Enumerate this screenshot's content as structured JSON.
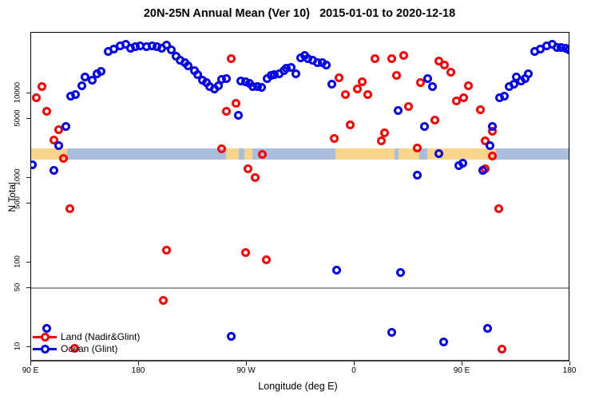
{
  "header": {
    "title": "20N-25N Annual Mean (Ver 10)   2015-01-01 to 2020-12-18"
  },
  "legend": {
    "items": [
      {
        "label": "Land (Nadir&Glint)",
        "color": "#ff0000"
      },
      {
        "label": "Ocean (Glint)",
        "color": "#0000ee"
      }
    ]
  },
  "colors": {
    "land": "#ff0000",
    "ocean": "#0000ee",
    "band_ocean": "#a9bedc",
    "band_land": "#fbd48b",
    "ref_line": "#9b9b9b"
  },
  "chart_data": {
    "type": "scatter",
    "title": "20N-25N Annual Mean (Ver 10)   2015-01-01 to 2020-12-18",
    "xlabel": "Longitude (deg E)",
    "ylabel": "N Total",
    "x_axis": {
      "start_deg": 90,
      "end_deg": 540,
      "note": "longitude wraps eastward from 90E to 180"
    },
    "x_ticks": [
      {
        "deg": 90,
        "label": "90 E"
      },
      {
        "deg": 180,
        "label": "180"
      },
      {
        "deg": 270,
        "label": "90 W"
      },
      {
        "deg": 360,
        "label": "0"
      },
      {
        "deg": 450,
        "label": "90 E"
      },
      {
        "deg": 540,
        "label": "180"
      }
    ],
    "y_scale": "log10",
    "y_ticks": [
      {
        "value": 10,
        "label": "10"
      },
      {
        "value": 50,
        "label": "50"
      },
      {
        "value": 100,
        "label": "100"
      },
      {
        "value": 500,
        "label": "500"
      },
      {
        "value": 1000,
        "label": "1000"
      },
      {
        "value": 5000,
        "label": "5000"
      },
      {
        "value": 10000,
        "label": "10000"
      }
    ],
    "ref_line": {
      "value": 50
    },
    "band": {
      "top_value": 2210,
      "bottom_value": 1640,
      "base_range_deg": [
        90,
        538.7
      ],
      "land_segments_deg": [
        [
          90,
          120
        ],
        [
          252.7,
          263.3
        ],
        [
          268,
          274.7
        ],
        [
          344,
          393.3
        ],
        [
          396.7,
          414
        ],
        [
          420.7,
          478
        ]
      ]
    },
    "series": [
      {
        "name": "Land (Nadir&Glint)",
        "color": "#ff0000",
        "points": [
          [
            94,
            8970
          ],
          [
            98.7,
            12100
          ],
          [
            102.7,
            6200
          ],
          [
            109.3,
            2780
          ],
          [
            113.3,
            3690
          ],
          [
            116.7,
            1690
          ],
          [
            122,
            438
          ],
          [
            126,
            9.6
          ],
          [
            200,
            36
          ],
          [
            202.7,
            139
          ],
          [
            249.3,
            2230
          ],
          [
            253.3,
            6070
          ],
          [
            256.7,
            26000
          ],
          [
            260.7,
            7540
          ],
          [
            269.3,
            130
          ],
          [
            270.7,
            1270
          ],
          [
            277.3,
            1020
          ],
          [
            282.7,
            1880
          ],
          [
            286,
            109
          ],
          [
            342.7,
            2960
          ],
          [
            346.7,
            15200
          ],
          [
            352,
            9780
          ],
          [
            356,
            4200
          ],
          [
            362,
            11200
          ],
          [
            366,
            13600
          ],
          [
            371.3,
            9780
          ],
          [
            376.7,
            26000
          ],
          [
            382,
            2720
          ],
          [
            385.3,
            3380
          ],
          [
            391.3,
            26000
          ],
          [
            395.3,
            16200
          ],
          [
            400.7,
            27900
          ],
          [
            405.3,
            6920
          ],
          [
            412,
            2280
          ],
          [
            415.3,
            13300
          ],
          [
            426.7,
            4880
          ],
          [
            430,
            23900
          ],
          [
            435.3,
            21800
          ],
          [
            440,
            17600
          ],
          [
            445.3,
            8050
          ],
          [
            451.3,
            8970
          ],
          [
            455.3,
            12400
          ],
          [
            464.7,
            6470
          ],
          [
            468.7,
            2720
          ],
          [
            469.3,
            1270
          ],
          [
            474.7,
            3530
          ],
          [
            475.3,
            1800
          ],
          [
            480,
            438
          ],
          [
            483.3,
            9.4
          ]
        ]
      },
      {
        "name": "Ocean (Glint)",
        "color": "#0000ee",
        "points": [
          [
            91.3,
            1420
          ],
          [
            103.3,
            16.5
          ],
          [
            108.7,
            1220
          ],
          [
            112.7,
            2390
          ],
          [
            118.7,
            4100
          ],
          [
            122.7,
            9350
          ],
          [
            126.7,
            9780
          ],
          [
            132,
            12400
          ],
          [
            135.3,
            15700
          ],
          [
            141.3,
            14400
          ],
          [
            144.7,
            16900
          ],
          [
            148,
            18000
          ],
          [
            154,
            31600
          ],
          [
            158.7,
            33100
          ],
          [
            164,
            36700
          ],
          [
            168.7,
            38300
          ],
          [
            173.3,
            33800
          ],
          [
            176.7,
            35300
          ],
          [
            181.3,
            36700
          ],
          [
            186,
            35300
          ],
          [
            190.7,
            36700
          ],
          [
            195.3,
            35300
          ],
          [
            199.3,
            33800
          ],
          [
            202.7,
            37500
          ],
          [
            206.7,
            33000
          ],
          [
            210.7,
            27200
          ],
          [
            214,
            24400
          ],
          [
            218,
            22900
          ],
          [
            221.3,
            21000
          ],
          [
            226,
            18400
          ],
          [
            228.7,
            16500
          ],
          [
            232.7,
            14400
          ],
          [
            236,
            13300
          ],
          [
            238.7,
            12100
          ],
          [
            242.7,
            11200
          ],
          [
            246,
            12400
          ],
          [
            249.3,
            14500
          ],
          [
            252.7,
            15100
          ],
          [
            256.7,
            13.5
          ],
          [
            263.3,
            5450
          ],
          [
            265.3,
            13900
          ],
          [
            268.7,
            13600
          ],
          [
            272,
            13000
          ],
          [
            275.3,
            12100
          ],
          [
            278.7,
            11900
          ],
          [
            282,
            11700
          ],
          [
            286.7,
            15100
          ],
          [
            290,
            16200
          ],
          [
            293.3,
            16500
          ],
          [
            296.7,
            16900
          ],
          [
            300.7,
            18700
          ],
          [
            303.3,
            20000
          ],
          [
            306.7,
            20400
          ],
          [
            310.7,
            16900
          ],
          [
            314.7,
            26500
          ],
          [
            318,
            27900
          ],
          [
            321.3,
            26000
          ],
          [
            325.3,
            24900
          ],
          [
            328.7,
            23300
          ],
          [
            332.7,
            22900
          ],
          [
            336,
            21800
          ],
          [
            341.3,
            12700
          ],
          [
            344.7,
            82
          ],
          [
            390.7,
            15.1
          ],
          [
            396,
            6320
          ],
          [
            398,
            77
          ],
          [
            412,
            1070
          ],
          [
            418,
            4020
          ],
          [
            420.7,
            15100
          ],
          [
            425.3,
            12100
          ],
          [
            430,
            1920
          ],
          [
            434,
            11.4
          ],
          [
            446.7,
            1390
          ],
          [
            450,
            1480
          ],
          [
            466.7,
            1220
          ],
          [
            471.3,
            16.5
          ],
          [
            472.7,
            2390
          ],
          [
            475.3,
            4100
          ],
          [
            480.7,
            8800
          ],
          [
            484.7,
            9350
          ],
          [
            489.3,
            12100
          ],
          [
            492.7,
            12700
          ],
          [
            495.3,
            15500
          ],
          [
            498.7,
            13900
          ],
          [
            502,
            15100
          ],
          [
            505.3,
            16900
          ],
          [
            510,
            31600
          ],
          [
            515.3,
            33100
          ],
          [
            520,
            36700
          ],
          [
            524.7,
            38300
          ],
          [
            528.7,
            34600
          ],
          [
            532,
            34600
          ],
          [
            536,
            33800
          ],
          [
            538.7,
            33000
          ]
        ]
      }
    ]
  }
}
